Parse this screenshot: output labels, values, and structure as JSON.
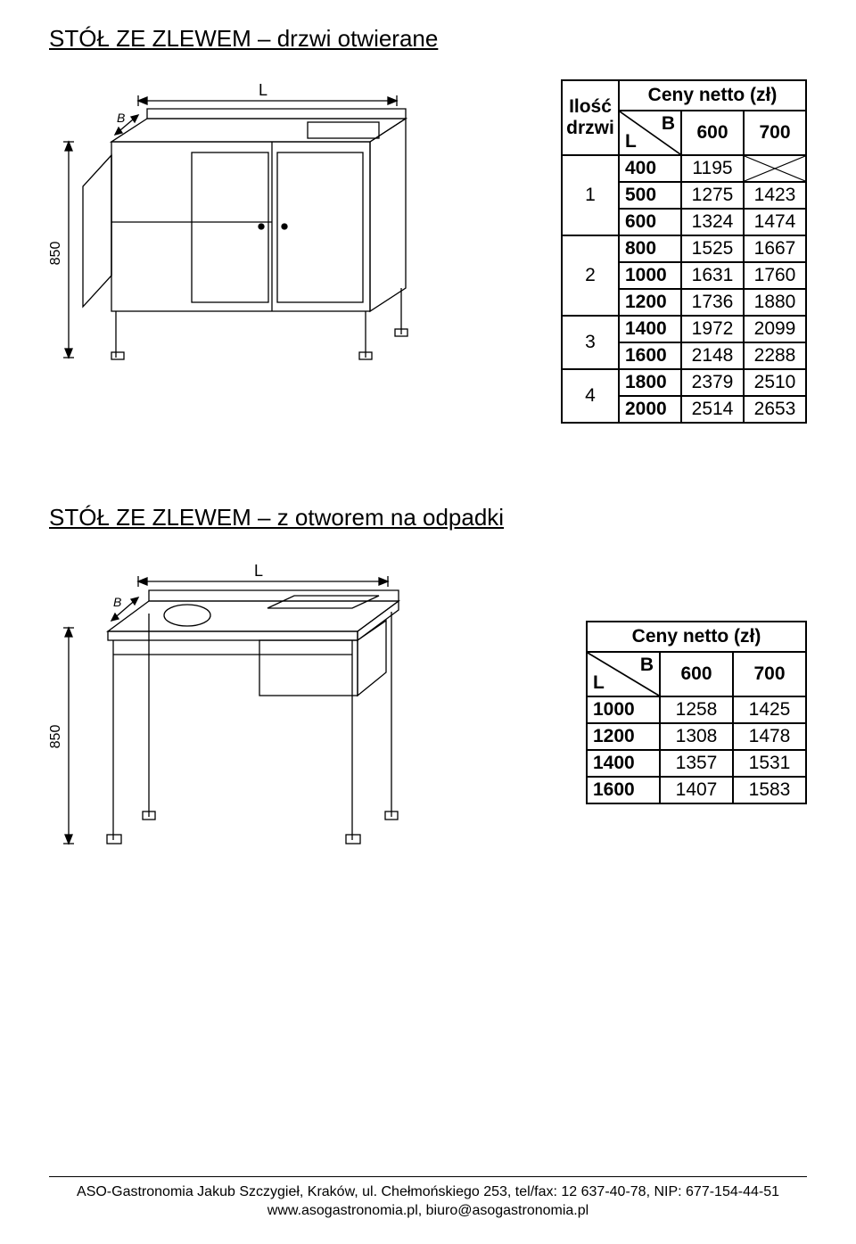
{
  "headings": {
    "s1": "STÓŁ ZE ZLEWEM – drzwi otwierane",
    "s2": "STÓŁ ZE ZLEWEM – z otworem na odpadki"
  },
  "table1": {
    "caption": "Ceny netto (zł)",
    "ilosc_label_line1": "Ilość",
    "ilosc_label_line2": "drzwi",
    "b_label": "B",
    "l_label": "L",
    "col_headers": [
      "600",
      "700"
    ],
    "groups": [
      {
        "door": "1",
        "rows": [
          {
            "l": "400",
            "v": [
              "1195",
              null
            ]
          },
          {
            "l": "500",
            "v": [
              "1275",
              "1423"
            ]
          },
          {
            "l": "600",
            "v": [
              "1324",
              "1474"
            ]
          }
        ]
      },
      {
        "door": "2",
        "rows": [
          {
            "l": "800",
            "v": [
              "1525",
              "1667"
            ]
          },
          {
            "l": "1000",
            "v": [
              "1631",
              "1760"
            ]
          },
          {
            "l": "1200",
            "v": [
              "1736",
              "1880"
            ]
          }
        ]
      },
      {
        "door": "3",
        "rows": [
          {
            "l": "1400",
            "v": [
              "1972",
              "2099"
            ]
          },
          {
            "l": "1600",
            "v": [
              "2148",
              "2288"
            ]
          }
        ]
      },
      {
        "door": "4",
        "rows": [
          {
            "l": "1800",
            "v": [
              "2379",
              "2510"
            ]
          },
          {
            "l": "2000",
            "v": [
              "2514",
              "2653"
            ]
          }
        ]
      }
    ]
  },
  "table2": {
    "caption": "Ceny netto (zł)",
    "b_label": "B",
    "l_label": "L",
    "col_headers": [
      "600",
      "700"
    ],
    "rows": [
      {
        "l": "1000",
        "v": [
          "1258",
          "1425"
        ]
      },
      {
        "l": "1200",
        "v": [
          "1308",
          "1478"
        ]
      },
      {
        "l": "1400",
        "v": [
          "1357",
          "1531"
        ]
      },
      {
        "l": "1600",
        "v": [
          "1407",
          "1583"
        ]
      }
    ]
  },
  "diagrams": {
    "dim_L": "L",
    "dim_B": "B",
    "dim_850": "850"
  },
  "footer": {
    "line1": "ASO-Gastronomia Jakub Szczygieł, Kraków, ul. Chełmońskiego 253, tel/fax: 12 637-40-78,  NIP: 677-154-44-51",
    "line2": "www.asogastronomia.pl, biuro@asogastronomia.pl"
  }
}
